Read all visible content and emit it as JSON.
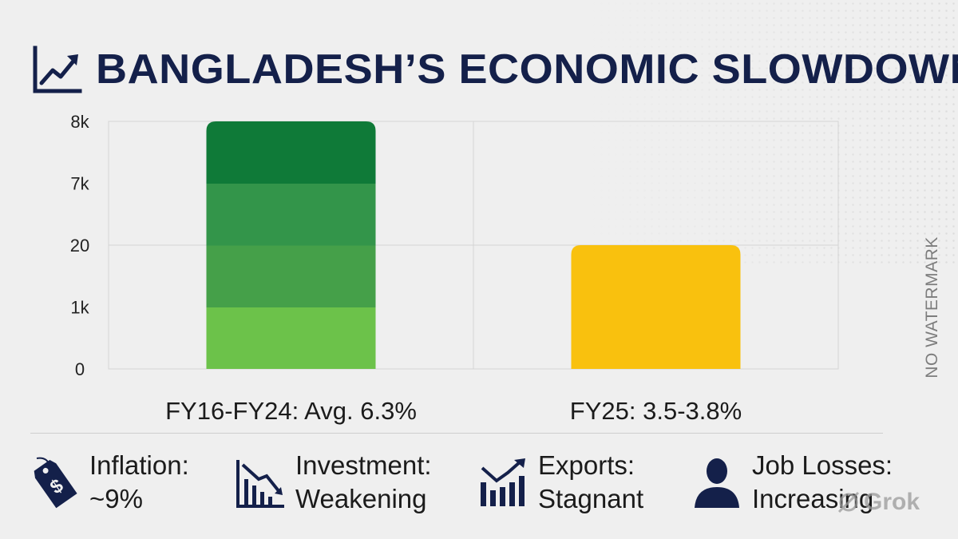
{
  "title": "BANGLADESH’S ECONOMIC SLOWDOWN",
  "chart_data": {
    "type": "bar",
    "title": "BANGLADESH’S ECONOMIC SLOWDOWN",
    "y_tick_labels": [
      "0",
      "1k",
      "20",
      "7k",
      "8k"
    ],
    "categories": [
      "FY16-FY24: Avg. 6.3%",
      "FY25: 3.5-3.8%"
    ],
    "values": [
      4,
      2
    ],
    "ylim": [
      0,
      4
    ],
    "grid": true,
    "bar_colors": [
      [
        "#6cc24a",
        "#45a049",
        "#33954a",
        "#0f7a38"
      ],
      [
        "#f9c10e"
      ]
    ]
  },
  "stats": [
    {
      "icon": "price-tag-dollar-icon",
      "label": "Inflation:",
      "value": "~9%"
    },
    {
      "icon": "declining-bar-chart-icon",
      "label": "Investment:",
      "value": "Weakening"
    },
    {
      "icon": "bar-chart-trend-icon",
      "label": "Exports:",
      "value": "Stagnant"
    },
    {
      "icon": "person-silhouette-icon",
      "label": "Job Losses:",
      "value": "Increasing"
    }
  ],
  "watermark": "NO WATERMARK",
  "brand": "Grok",
  "colors": {
    "navy": "#14204a",
    "green_dark": "#0f7a38",
    "green_light": "#6cc24a",
    "yellow": "#f9c10e"
  }
}
